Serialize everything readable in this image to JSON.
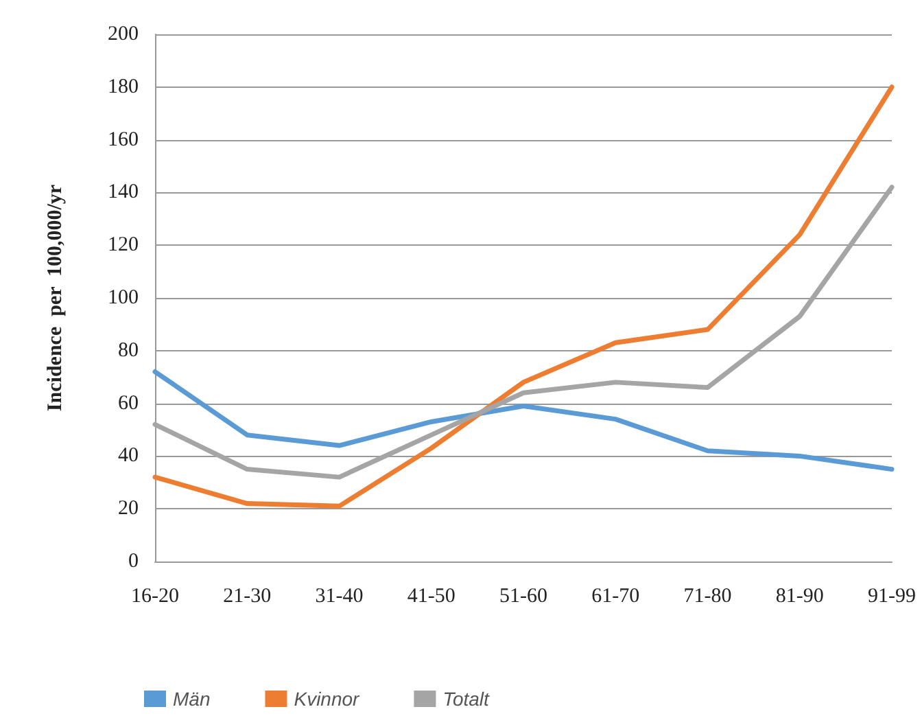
{
  "chart_data": {
    "type": "line",
    "ylabel": "Incidence  per  100,000/yr",
    "categories": [
      "16-20",
      "21-30",
      "31-40",
      "41-50",
      "51-60",
      "61-70",
      "71-80",
      "81-90",
      "91-99"
    ],
    "series": [
      {
        "name": "Män",
        "color": "#5b9bd5",
        "values": [
          72,
          48,
          44,
          53,
          59,
          54,
          42,
          40,
          35
        ]
      },
      {
        "name": "Kvinnor",
        "color": "#ed7d31",
        "values": [
          32,
          22,
          21,
          43,
          68,
          83,
          88,
          124,
          180
        ]
      },
      {
        "name": "Totalt",
        "color": "#a5a5a5",
        "values": [
          52,
          35,
          32,
          48,
          64,
          68,
          66,
          93,
          142
        ]
      }
    ],
    "ylim": [
      0,
      200
    ],
    "yticks": [
      0,
      20,
      40,
      60,
      80,
      100,
      120,
      140,
      160,
      180,
      200
    ],
    "grid": "y",
    "legend": "bottom left",
    "marker": "none"
  }
}
